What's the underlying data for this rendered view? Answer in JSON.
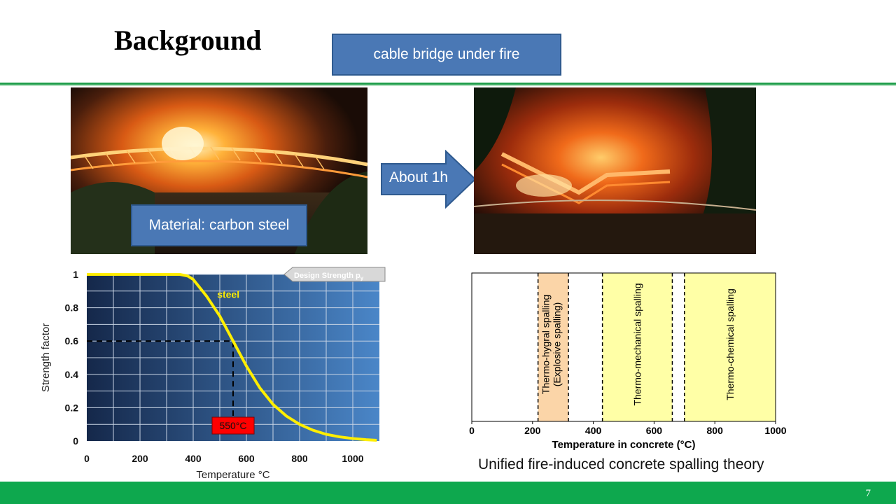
{
  "slide": {
    "title": "Background",
    "page_number": "7",
    "callout_top": "cable bridge under fire",
    "callout_material": "Material: carbon steel",
    "arrow_label": "About 1h",
    "caption_right": "Unified fire-induced concrete spalling theory"
  },
  "colors": {
    "accent_green": "#0ea84e",
    "callout_blue": "#4a78b5",
    "steel_curve": "#ffee00",
    "zone_orange": "#fbd5a8",
    "zone_yellow": "#ffffa6"
  },
  "chart_data": [
    {
      "type": "line",
      "title": "",
      "xlabel": "Temperature °C",
      "ylabel": "Strength factor",
      "xlim": [
        0,
        1100
      ],
      "ylim": [
        0,
        1
      ],
      "x_ticks": [
        "0",
        "200",
        "400",
        "600",
        "800",
        "1000"
      ],
      "y_ticks": [
        "0",
        "0.2",
        "0.4",
        "0.6",
        "0.8",
        "1"
      ],
      "grid": true,
      "series": [
        {
          "name": "steel",
          "x": [
            0,
            100,
            200,
            300,
            350,
            380,
            400,
            450,
            500,
            550,
            600,
            650,
            700,
            750,
            800,
            850,
            900,
            950,
            1000,
            1050,
            1090
          ],
          "y": [
            1,
            1,
            1,
            1,
            1,
            0.99,
            0.97,
            0.87,
            0.75,
            0.6,
            0.45,
            0.32,
            0.22,
            0.15,
            0.1,
            0.065,
            0.04,
            0.025,
            0.015,
            0.008,
            0.004
          ]
        }
      ],
      "annotations": {
        "design_strength_label": "Design Strength p",
        "design_strength_sub": "y",
        "critical_temp_label": "550°C",
        "critical_point": {
          "x": 550,
          "y": 0.6
        }
      }
    },
    {
      "type": "zones",
      "xlabel": "Temperature in concrete (°C)",
      "xlim": [
        0,
        1000
      ],
      "x_ticks": [
        "0",
        "200",
        "400",
        "600",
        "800",
        "1000"
      ],
      "zones": [
        {
          "label": "Thermo-hygral spalling",
          "label2": "(Explosive spalling)",
          "x_start": 218,
          "x_end": 318,
          "color": "#fbd5a8"
        },
        {
          "label": "Thermo-mechanical spalling",
          "x_start": 430,
          "x_end": 660,
          "color": "#ffffa6"
        },
        {
          "label": "Thermo-chemical spalling",
          "x_start": 700,
          "x_end": 1000,
          "color": "#ffffa6"
        }
      ]
    }
  ]
}
